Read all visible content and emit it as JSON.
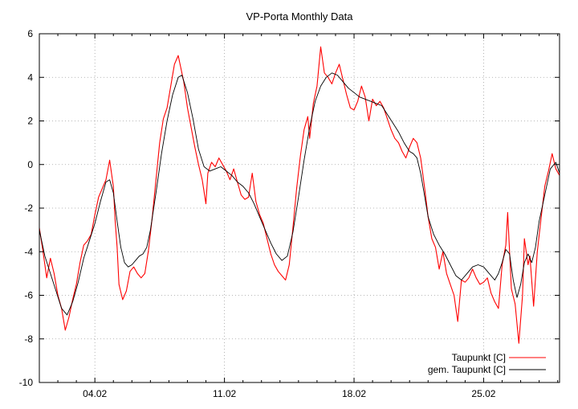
{
  "chart_data": {
    "type": "line",
    "title": "VP-Porta Monthly Data",
    "xlabel": "",
    "ylabel": "",
    "ylim": [
      -10,
      6
    ],
    "yticks": [
      -10,
      -8,
      -6,
      -4,
      -2,
      0,
      2,
      4,
      6
    ],
    "xlim_days": [
      1,
      29.1
    ],
    "xticks": [
      {
        "label": "04.02",
        "day": 4
      },
      {
        "label": "11.02",
        "day": 11
      },
      {
        "label": "18.02",
        "day": 18
      },
      {
        "label": "25.02",
        "day": 25
      }
    ],
    "grid": true,
    "legend_position": "bottom-right",
    "series": [
      {
        "name": "Taupunkt [C]",
        "color": "#ff0000",
        "points": [
          [
            1.0,
            -2.9
          ],
          [
            1.2,
            -4.0
          ],
          [
            1.4,
            -5.2
          ],
          [
            1.6,
            -4.3
          ],
          [
            1.8,
            -5.0
          ],
          [
            2.0,
            -6.0
          ],
          [
            2.2,
            -6.6
          ],
          [
            2.4,
            -7.6
          ],
          [
            2.6,
            -7.0
          ],
          [
            2.8,
            -6.2
          ],
          [
            3.0,
            -5.5
          ],
          [
            3.2,
            -4.5
          ],
          [
            3.4,
            -3.7
          ],
          [
            3.6,
            -3.5
          ],
          [
            3.8,
            -3.2
          ],
          [
            4.0,
            -2.3
          ],
          [
            4.2,
            -1.5
          ],
          [
            4.4,
            -1.1
          ],
          [
            4.6,
            -0.7
          ],
          [
            4.8,
            0.2
          ],
          [
            5.0,
            -1.0
          ],
          [
            5.1,
            -2.6
          ],
          [
            5.2,
            -3.8
          ],
          [
            5.3,
            -5.5
          ],
          [
            5.5,
            -6.2
          ],
          [
            5.7,
            -5.8
          ],
          [
            5.9,
            -4.9
          ],
          [
            6.1,
            -4.7
          ],
          [
            6.3,
            -5.0
          ],
          [
            6.5,
            -5.2
          ],
          [
            6.7,
            -5.0
          ],
          [
            6.9,
            -3.9
          ],
          [
            7.1,
            -2.4
          ],
          [
            7.3,
            -0.7
          ],
          [
            7.5,
            1.0
          ],
          [
            7.7,
            2.1
          ],
          [
            7.9,
            2.6
          ],
          [
            8.1,
            3.6
          ],
          [
            8.3,
            4.6
          ],
          [
            8.5,
            5.0
          ],
          [
            8.6,
            4.6
          ],
          [
            8.8,
            3.8
          ],
          [
            9.0,
            2.6
          ],
          [
            9.2,
            1.7
          ],
          [
            9.4,
            0.8
          ],
          [
            9.6,
            0.0
          ],
          [
            9.8,
            -0.7
          ],
          [
            10.0,
            -1.8
          ],
          [
            10.1,
            -0.4
          ],
          [
            10.3,
            0.1
          ],
          [
            10.5,
            -0.1
          ],
          [
            10.7,
            0.3
          ],
          [
            10.9,
            0.0
          ],
          [
            11.1,
            -0.3
          ],
          [
            11.3,
            -0.7
          ],
          [
            11.5,
            -0.2
          ],
          [
            11.7,
            -0.8
          ],
          [
            11.9,
            -1.4
          ],
          [
            12.1,
            -1.6
          ],
          [
            12.3,
            -1.5
          ],
          [
            12.5,
            -0.4
          ],
          [
            12.7,
            -1.7
          ],
          [
            12.9,
            -2.3
          ],
          [
            13.1,
            -2.7
          ],
          [
            13.3,
            -3.4
          ],
          [
            13.5,
            -4.1
          ],
          [
            13.7,
            -4.6
          ],
          [
            13.9,
            -4.9
          ],
          [
            14.1,
            -5.1
          ],
          [
            14.3,
            -5.3
          ],
          [
            14.5,
            -4.6
          ],
          [
            14.7,
            -2.9
          ],
          [
            14.9,
            -1.1
          ],
          [
            15.1,
            0.4
          ],
          [
            15.3,
            1.6
          ],
          [
            15.5,
            2.2
          ],
          [
            15.6,
            1.2
          ],
          [
            15.8,
            2.8
          ],
          [
            16.0,
            3.6
          ],
          [
            16.2,
            5.4
          ],
          [
            16.4,
            4.2
          ],
          [
            16.6,
            4.0
          ],
          [
            16.8,
            3.7
          ],
          [
            17.0,
            4.2
          ],
          [
            17.2,
            4.6
          ],
          [
            17.4,
            3.9
          ],
          [
            17.6,
            3.2
          ],
          [
            17.8,
            2.6
          ],
          [
            18.0,
            2.5
          ],
          [
            18.2,
            2.9
          ],
          [
            18.4,
            3.6
          ],
          [
            18.6,
            3.1
          ],
          [
            18.8,
            2.0
          ],
          [
            19.0,
            3.0
          ],
          [
            19.2,
            2.7
          ],
          [
            19.4,
            2.9
          ],
          [
            19.6,
            2.6
          ],
          [
            19.8,
            2.1
          ],
          [
            20.0,
            1.6
          ],
          [
            20.2,
            1.2
          ],
          [
            20.4,
            1.0
          ],
          [
            20.6,
            0.6
          ],
          [
            20.8,
            0.3
          ],
          [
            21.0,
            0.8
          ],
          [
            21.2,
            1.2
          ],
          [
            21.4,
            1.0
          ],
          [
            21.6,
            0.3
          ],
          [
            21.8,
            -1.0
          ],
          [
            22.0,
            -2.4
          ],
          [
            22.2,
            -3.4
          ],
          [
            22.4,
            -3.8
          ],
          [
            22.6,
            -4.8
          ],
          [
            22.8,
            -4.0
          ],
          [
            23.0,
            -5.0
          ],
          [
            23.2,
            -5.5
          ],
          [
            23.4,
            -6.0
          ],
          [
            23.6,
            -7.2
          ],
          [
            23.8,
            -5.3
          ],
          [
            24.0,
            -5.4
          ],
          [
            24.2,
            -5.2
          ],
          [
            24.4,
            -4.8
          ],
          [
            24.6,
            -5.2
          ],
          [
            24.8,
            -5.5
          ],
          [
            25.0,
            -5.4
          ],
          [
            25.2,
            -5.2
          ],
          [
            25.4,
            -5.9
          ],
          [
            25.6,
            -6.3
          ],
          [
            25.8,
            -6.6
          ],
          [
            26.0,
            -4.6
          ],
          [
            26.2,
            -3.7
          ],
          [
            26.3,
            -2.2
          ],
          [
            26.5,
            -5.7
          ],
          [
            26.7,
            -6.4
          ],
          [
            26.9,
            -8.2
          ],
          [
            27.1,
            -6.0
          ],
          [
            27.2,
            -3.4
          ],
          [
            27.4,
            -4.6
          ],
          [
            27.5,
            -4.2
          ],
          [
            27.7,
            -6.5
          ],
          [
            27.9,
            -4.0
          ],
          [
            28.1,
            -2.5
          ],
          [
            28.3,
            -1.0
          ],
          [
            28.5,
            -0.3
          ],
          [
            28.7,
            0.5
          ],
          [
            28.9,
            -0.2
          ],
          [
            29.1,
            -0.5
          ]
        ]
      },
      {
        "name": "gem. Taupunkt [C]",
        "color": "#000000",
        "points": [
          [
            1.0,
            -3.0
          ],
          [
            1.3,
            -4.2
          ],
          [
            1.6,
            -5.0
          ],
          [
            1.9,
            -5.8
          ],
          [
            2.2,
            -6.6
          ],
          [
            2.5,
            -6.9
          ],
          [
            2.8,
            -6.3
          ],
          [
            3.1,
            -5.4
          ],
          [
            3.4,
            -4.3
          ],
          [
            3.7,
            -3.5
          ],
          [
            4.0,
            -2.7
          ],
          [
            4.3,
            -1.7
          ],
          [
            4.6,
            -0.8
          ],
          [
            4.8,
            -0.7
          ],
          [
            5.0,
            -1.3
          ],
          [
            5.2,
            -2.6
          ],
          [
            5.4,
            -3.8
          ],
          [
            5.6,
            -4.5
          ],
          [
            5.8,
            -4.7
          ],
          [
            6.0,
            -4.6
          ],
          [
            6.2,
            -4.4
          ],
          [
            6.4,
            -4.2
          ],
          [
            6.6,
            -4.1
          ],
          [
            6.8,
            -3.8
          ],
          [
            7.0,
            -3.0
          ],
          [
            7.3,
            -1.3
          ],
          [
            7.6,
            0.5
          ],
          [
            7.9,
            2.0
          ],
          [
            8.2,
            3.2
          ],
          [
            8.5,
            4.0
          ],
          [
            8.7,
            4.1
          ],
          [
            9.0,
            3.3
          ],
          [
            9.3,
            2.1
          ],
          [
            9.6,
            0.7
          ],
          [
            9.9,
            -0.1
          ],
          [
            10.2,
            -0.3
          ],
          [
            10.5,
            -0.2
          ],
          [
            10.8,
            -0.1
          ],
          [
            11.1,
            -0.3
          ],
          [
            11.4,
            -0.5
          ],
          [
            11.7,
            -0.8
          ],
          [
            12.0,
            -1.0
          ],
          [
            12.3,
            -1.3
          ],
          [
            12.6,
            -1.8
          ],
          [
            12.9,
            -2.4
          ],
          [
            13.2,
            -3.0
          ],
          [
            13.5,
            -3.6
          ],
          [
            13.8,
            -4.1
          ],
          [
            14.1,
            -4.4
          ],
          [
            14.4,
            -4.2
          ],
          [
            14.7,
            -3.1
          ],
          [
            15.0,
            -1.5
          ],
          [
            15.3,
            0.2
          ],
          [
            15.6,
            1.7
          ],
          [
            15.9,
            2.9
          ],
          [
            16.2,
            3.6
          ],
          [
            16.5,
            4.0
          ],
          [
            16.8,
            4.2
          ],
          [
            17.1,
            4.1
          ],
          [
            17.4,
            3.8
          ],
          [
            17.7,
            3.5
          ],
          [
            18.0,
            3.3
          ],
          [
            18.3,
            3.1
          ],
          [
            18.6,
            3.0
          ],
          [
            18.9,
            2.9
          ],
          [
            19.2,
            2.8
          ],
          [
            19.5,
            2.7
          ],
          [
            19.8,
            2.3
          ],
          [
            20.1,
            1.9
          ],
          [
            20.4,
            1.5
          ],
          [
            20.7,
            1.0
          ],
          [
            21.0,
            0.6
          ],
          [
            21.2,
            0.5
          ],
          [
            21.4,
            0.3
          ],
          [
            21.6,
            -0.4
          ],
          [
            21.8,
            -1.4
          ],
          [
            22.0,
            -2.4
          ],
          [
            22.3,
            -3.2
          ],
          [
            22.6,
            -3.7
          ],
          [
            22.9,
            -4.1
          ],
          [
            23.2,
            -4.6
          ],
          [
            23.5,
            -5.1
          ],
          [
            23.8,
            -5.3
          ],
          [
            24.1,
            -5.0
          ],
          [
            24.4,
            -4.7
          ],
          [
            24.7,
            -4.6
          ],
          [
            25.0,
            -4.7
          ],
          [
            25.3,
            -5.0
          ],
          [
            25.6,
            -5.3
          ],
          [
            25.8,
            -5.0
          ],
          [
            26.0,
            -4.5
          ],
          [
            26.2,
            -3.9
          ],
          [
            26.4,
            -4.1
          ],
          [
            26.6,
            -5.3
          ],
          [
            26.8,
            -6.1
          ],
          [
            27.0,
            -5.5
          ],
          [
            27.2,
            -4.5
          ],
          [
            27.4,
            -4.1
          ],
          [
            27.6,
            -4.5
          ],
          [
            27.8,
            -3.8
          ],
          [
            28.0,
            -2.6
          ],
          [
            28.3,
            -1.4
          ],
          [
            28.6,
            -0.2
          ],
          [
            28.9,
            0.1
          ],
          [
            29.1,
            -0.4
          ]
        ]
      }
    ]
  }
}
